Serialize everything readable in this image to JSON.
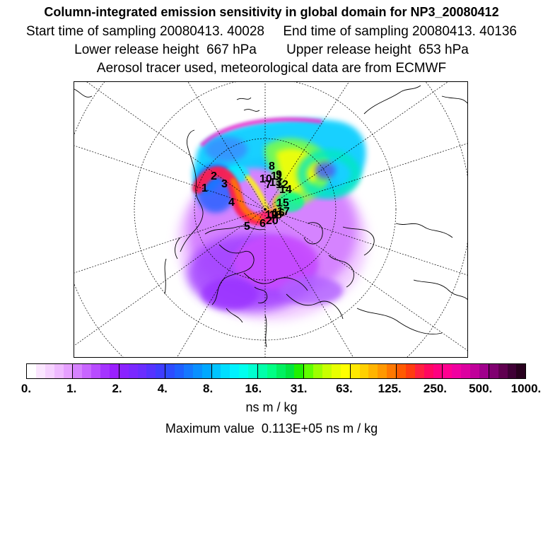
{
  "header": {
    "title": "Column-integrated emission sensitivity in global domain for NP3_20080412",
    "sampling_line": "Start time of sampling 20080413. 40028     End time of sampling 20080413. 40136",
    "release_line": "Lower release height  667 hPa        Upper release height  653 hPa",
    "tracer_line": "Aerosol tracer used, meteorological data are from ECMWF"
  },
  "map": {
    "release_point_labels": [
      "1",
      "2",
      "3",
      "4",
      "5",
      "6",
      "7",
      "8",
      "9",
      "10",
      "11",
      "12",
      "13",
      "14",
      "15",
      "16",
      "17",
      "18",
      "19",
      "20"
    ]
  },
  "legend": {
    "ticks": [
      "0.",
      "1.",
      "2.",
      "4.",
      "8.",
      "16.",
      "31.",
      "63.",
      "125.",
      "250.",
      "500.",
      "1000."
    ],
    "colors": [
      "#ffffff",
      "#fbe6ff",
      "#f6d2ff",
      "#efbaff",
      "#e6a0ff",
      "#d682ff",
      "#c866ff",
      "#b84cff",
      "#a534ff",
      "#9a1fff",
      "#8a22ff",
      "#7a28ff",
      "#6a2dff",
      "#5533ff",
      "#3f3dff",
      "#2d4cff",
      "#1f60ff",
      "#1578ff",
      "#0a90ff",
      "#00a8ff",
      "#00c4ff",
      "#00deff",
      "#00f2ff",
      "#00ffee",
      "#00ffd0",
      "#00ffaa",
      "#00ff84",
      "#00f060",
      "#00e540",
      "#20f000",
      "#60ff00",
      "#9cff00",
      "#c8ff00",
      "#e8ff00",
      "#ffff00",
      "#ffe800",
      "#ffd000",
      "#ffb400",
      "#ff9800",
      "#ff7800",
      "#ff5a00",
      "#ff3c10",
      "#ff2040",
      "#ff0860",
      "#ff0080",
      "#ff0090",
      "#f000a0",
      "#dc00a0",
      "#c0009a",
      "#a0008c",
      "#800070",
      "#600050",
      "#400036",
      "#28001e"
    ],
    "units": "ns m / kg",
    "max_value_text": "Maximum value  0.113E+05 ns m / kg"
  }
}
